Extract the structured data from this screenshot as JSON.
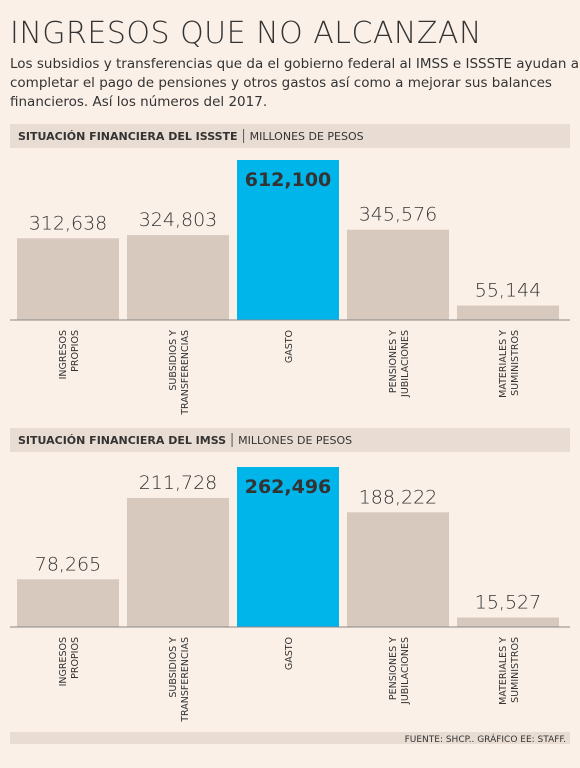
{
  "header": {
    "title": "INGRESOS QUE NO ALCANZAN",
    "subtitle": [
      "Los subsidios y transferencias que da el gobierno federal al IMSS e ISSSTE ayudan a",
      "completar el pago de pensiones y otros gastos así como a mejorar sus balances",
      "financieros. Así los números del 2017."
    ]
  },
  "chart_data": [
    {
      "type": "bar",
      "title": "SITUACIÓN FINANCIERA DEL ISSSTE",
      "subtitle": "MILLONES DE PESOS",
      "categories": [
        "INGRESOS\nPROPIOS",
        "SUBSIDIOS Y\nTRANSFERENCIAS",
        "GASTO",
        "PENSIONES Y\nJUBILACIONES",
        "MATERIALES Y\nSUMINISTROS"
      ],
      "values": [
        312638,
        324803,
        612100,
        345576,
        55144
      ],
      "value_labels": [
        "312,638",
        "324,803",
        "612,100",
        "345,576",
        "55,144"
      ],
      "color": "#d8c9be",
      "highlight_color": "#00b5ea",
      "highlight": 2
    },
    {
      "type": "bar",
      "title": "SITUACIÓN FINANCIERA DEL IMSS",
      "subtitle": "MILLONES DE PESOS",
      "categories": [
        "INGRESOS\nPROPIOS",
        "SUBSIDIOS Y\nTRANSFERENCIAS",
        "GASTO",
        "PENSIONES Y\nJUBILACIONES",
        "MATERIALES Y\nSUMINISTROS"
      ],
      "values": [
        78265,
        211728,
        262496,
        188222,
        15527
      ],
      "value_labels": [
        "78,265",
        "211,728",
        "262,496",
        "188,222",
        "15,527"
      ],
      "color": "#d8c9be",
      "highlight_color": "#00b5ea",
      "highlight": 2
    }
  ],
  "source": "FUENTE: SHCP.. GRÁFICO EE: STAFF."
}
